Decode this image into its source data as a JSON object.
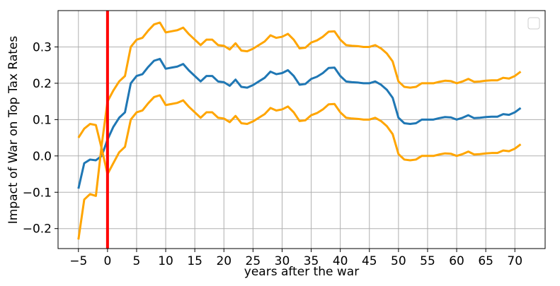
{
  "chart_data": {
    "type": "line",
    "xlabel": "years after the war",
    "ylabel": "Impact of War on Top Tax Rates",
    "x": [
      -5,
      -4,
      -3,
      -2,
      -1,
      0,
      1,
      2,
      3,
      4,
      5,
      6,
      7,
      8,
      9,
      10,
      11,
      12,
      13,
      14,
      15,
      16,
      17,
      18,
      19,
      20,
      21,
      22,
      23,
      24,
      25,
      26,
      27,
      28,
      29,
      30,
      31,
      32,
      33,
      34,
      35,
      36,
      37,
      38,
      39,
      40,
      41,
      42,
      43,
      44,
      45,
      46,
      47,
      48,
      49,
      50,
      51,
      52,
      53,
      54,
      55,
      56,
      57,
      58,
      59,
      60,
      61,
      62,
      63,
      64,
      65,
      66,
      67,
      68,
      69,
      70,
      71
    ],
    "series": [
      {
        "color": "#1f77b4",
        "values": [
          -0.09,
          -0.02,
          -0.01,
          -0.012,
          0.0,
          0.045,
          0.08,
          0.105,
          0.12,
          0.2,
          0.22,
          0.225,
          0.245,
          0.262,
          0.267,
          0.24,
          0.243,
          0.246,
          0.253,
          0.235,
          0.22,
          0.205,
          0.22,
          0.22,
          0.205,
          0.203,
          0.193,
          0.21,
          0.19,
          0.188,
          0.195,
          0.205,
          0.215,
          0.232,
          0.225,
          0.228,
          0.236,
          0.22,
          0.196,
          0.198,
          0.212,
          0.218,
          0.228,
          0.242,
          0.243,
          0.22,
          0.205,
          0.203,
          0.202,
          0.2,
          0.2,
          0.205,
          0.196,
          0.182,
          0.16,
          0.105,
          0.09,
          0.088,
          0.09,
          0.1,
          0.1,
          0.1,
          0.104,
          0.107,
          0.106,
          0.1,
          0.105,
          0.112,
          0.104,
          0.105,
          0.107,
          0.108,
          0.108,
          0.115,
          0.113,
          0.12,
          0.132
        ]
      },
      {
        "color": "#ffa500",
        "values": [
          -0.23,
          -0.12,
          -0.105,
          -0.11,
          0.03,
          0.15,
          0.18,
          0.205,
          0.22,
          0.3,
          0.32,
          0.325,
          0.345,
          0.362,
          0.367,
          0.34,
          0.343,
          0.346,
          0.353,
          0.335,
          0.32,
          0.305,
          0.32,
          0.32,
          0.305,
          0.303,
          0.293,
          0.31,
          0.29,
          0.288,
          0.295,
          0.305,
          0.315,
          0.332,
          0.325,
          0.328,
          0.336,
          0.32,
          0.296,
          0.298,
          0.312,
          0.318,
          0.328,
          0.342,
          0.343,
          0.32,
          0.305,
          0.303,
          0.302,
          0.3,
          0.3,
          0.305,
          0.296,
          0.282,
          0.26,
          0.205,
          0.19,
          0.188,
          0.19,
          0.2,
          0.2,
          0.2,
          0.204,
          0.207,
          0.206,
          0.2,
          0.205,
          0.212,
          0.204,
          0.205,
          0.207,
          0.208,
          0.208,
          0.215,
          0.213,
          0.22,
          0.232
        ]
      },
      {
        "color": "#ffa500",
        "values": [
          0.05,
          0.075,
          0.088,
          0.085,
          0.02,
          -0.05,
          -0.02,
          0.01,
          0.025,
          0.1,
          0.12,
          0.125,
          0.145,
          0.162,
          0.167,
          0.14,
          0.143,
          0.146,
          0.153,
          0.135,
          0.12,
          0.105,
          0.12,
          0.12,
          0.105,
          0.103,
          0.093,
          0.11,
          0.09,
          0.088,
          0.095,
          0.105,
          0.115,
          0.132,
          0.125,
          0.128,
          0.136,
          0.12,
          0.096,
          0.098,
          0.112,
          0.118,
          0.128,
          0.142,
          0.143,
          0.12,
          0.105,
          0.103,
          0.102,
          0.1,
          0.1,
          0.105,
          0.096,
          0.082,
          0.06,
          0.005,
          -0.01,
          -0.012,
          -0.01,
          0.0,
          0.0,
          0.0,
          0.004,
          0.007,
          0.006,
          0.0,
          0.005,
          0.012,
          0.004,
          0.005,
          0.007,
          0.008,
          0.008,
          0.015,
          0.013,
          0.02,
          0.032
        ]
      }
    ],
    "vline": {
      "x": 0,
      "color": "#ff0000"
    },
    "xlim": [
      -8.5,
      75.2
    ],
    "ylim": [
      -0.255,
      0.4
    ],
    "xticks": [
      {
        "value": -5,
        "label": "−5"
      },
      0,
      5,
      10,
      15,
      20,
      25,
      30,
      35,
      40,
      45,
      50,
      55,
      60,
      65,
      70
    ],
    "yticks": [
      {
        "value": -0.2,
        "label": "−0.2"
      },
      {
        "value": -0.1,
        "label": "−0.1"
      },
      {
        "value": 0,
        "label": "0.0"
      },
      0.1,
      0.2,
      0.3
    ],
    "grid": true,
    "legend": "upper right"
  }
}
